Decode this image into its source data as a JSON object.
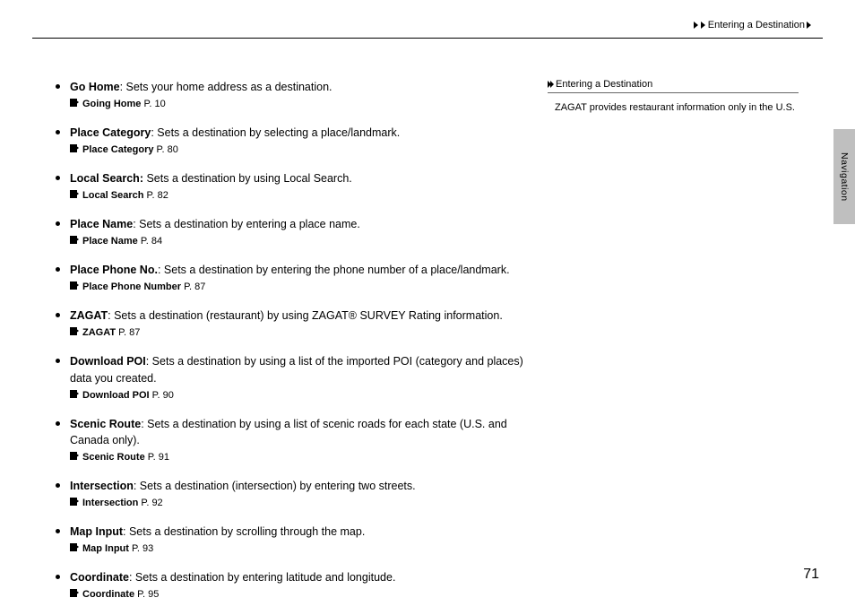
{
  "breadcrumb": {
    "text": "Entering a Destination"
  },
  "items": [
    {
      "term": "Go Home",
      "sep": ": ",
      "desc": "Sets your home address as a destination.",
      "ref_label": "Going Home",
      "ref_page": "P. 10"
    },
    {
      "term": "Place Category",
      "sep": ": ",
      "desc": "Sets a destination by selecting a place/landmark.",
      "ref_label": "Place Category",
      "ref_page": "P. 80"
    },
    {
      "term": "Local Search:",
      "sep": " ",
      "desc": "Sets a destination by using Local Search.",
      "ref_label": "Local Search",
      "ref_page": "P. 82"
    },
    {
      "term": "Place Name",
      "sep": ": ",
      "desc": "Sets a destination by entering a place name.",
      "ref_label": "Place Name",
      "ref_page": "P. 84"
    },
    {
      "term": "Place Phone No.",
      "sep": ": ",
      "desc": "Sets a destination by entering the phone number of a place/landmark.",
      "ref_label": "Place Phone Number",
      "ref_page": "P. 87"
    },
    {
      "term": "ZAGAT",
      "sep": ": ",
      "desc": "Sets a destination (restaurant) by using ZAGAT® SURVEY Rating information.",
      "ref_label": "ZAGAT",
      "ref_page": "P. 87"
    },
    {
      "term": "Download POI",
      "sep": ": ",
      "desc": "Sets a destination by using a list of the imported POI (category and places) data you created.",
      "ref_label": "Download POI",
      "ref_page": "P. 90"
    },
    {
      "term": "Scenic Route",
      "sep": ": ",
      "desc": "Sets a destination by using a list of scenic roads for each state (U.S. and Canada only).",
      "ref_label": "Scenic Route",
      "ref_page": "P. 91"
    },
    {
      "term": "Intersection",
      "sep": ": ",
      "desc": "Sets a destination (intersection) by entering two streets.",
      "ref_label": "Intersection",
      "ref_page": "P. 92"
    },
    {
      "term": "Map Input",
      "sep": ": ",
      "desc": "Sets a destination by scrolling through the map.",
      "ref_label": "Map Input",
      "ref_page": "P. 93"
    },
    {
      "term": "Coordinate",
      "sep": ": ",
      "desc": "Sets a destination by entering latitude and longitude.",
      "ref_label": "Coordinate",
      "ref_page": "P. 95"
    }
  ],
  "sidebar": {
    "heading": "Entering a Destination",
    "body": "ZAGAT provides restaurant information only in the U.S."
  },
  "tab": {
    "label": "Navigation"
  },
  "page_number": "71"
}
